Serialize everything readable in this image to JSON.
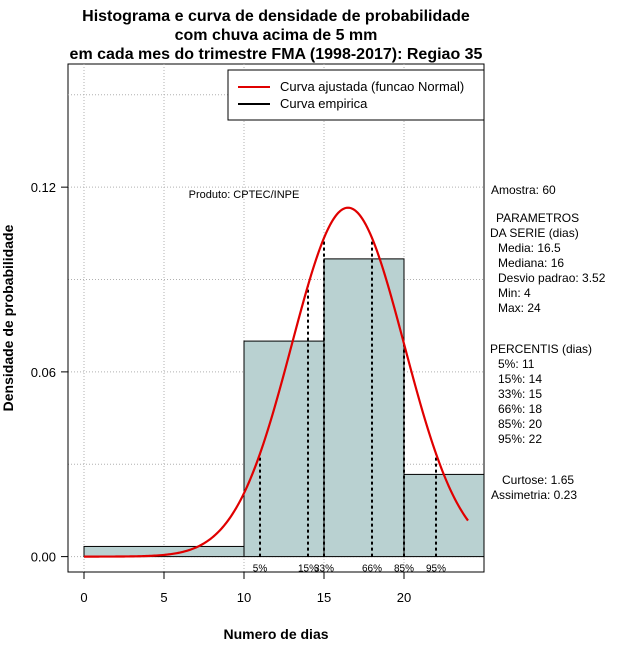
{
  "chart_data": {
    "type": "bar",
    "title": [
      "Histograma e curva de densidade de probabilidade",
      "com chuva acima de 5 mm",
      "em cada mes do trimestre FMA (1998-2017): Regiao 35"
    ],
    "xlabel": "Numero de dias",
    "ylabel": "Densidade de probabilidade",
    "xlim": [
      -1,
      25
    ],
    "ylim": [
      -0.005,
      0.16
    ],
    "x_ticks": [
      "0",
      "5",
      "10",
      "15",
      "20"
    ],
    "y_ticks": [
      "0.00",
      "0.06",
      "0.12"
    ],
    "bins": [
      {
        "from": 0,
        "to": 10,
        "density": 0.0033
      },
      {
        "from": 10,
        "to": 15,
        "density": 0.07
      },
      {
        "from": 15,
        "to": 20,
        "density": 0.0967
      },
      {
        "from": 20,
        "to": 25,
        "density": 0.0267
      }
    ],
    "normal_fit": {
      "mean": 16.5,
      "sd": 3.52,
      "x_from": 0,
      "x_to": 24
    },
    "percentiles": [
      {
        "label": "5%",
        "x": 11
      },
      {
        "label": "15%",
        "x": 14
      },
      {
        "label": "33%",
        "x": 15
      },
      {
        "label": "66%",
        "x": 18
      },
      {
        "label": "85%",
        "x": 20
      },
      {
        "label": "95%",
        "x": 22
      }
    ],
    "legend": [
      {
        "label": "Curva ajustada (funcao Normal)",
        "color": "#e00000"
      },
      {
        "label": "Curva empirica",
        "color": "#000000"
      }
    ],
    "annotation": "Produto: CPTEC/INPE",
    "colors": {
      "bar_fill": "#b9d1d1",
      "curve": "#e00000",
      "grid": "#b0b0b0"
    }
  },
  "side_panel": {
    "amostra": "Amostra: 60",
    "params_title_1": "PARAMETROS",
    "params_title_2": "DA SERIE (dias)",
    "params": [
      "Media: 16.5",
      "Mediana: 16",
      "Desvio padrao: 3.52",
      "Min: 4",
      "Max: 24"
    ],
    "percentis_title": "PERCENTIS (dias)",
    "percentis": [
      "5%: 11",
      "15%: 14",
      "33%: 15",
      "66%: 18",
      "85%: 20",
      "95%: 22"
    ],
    "curtose": "Curtose: 1.65",
    "assimetria": "Assimetria: 0.23"
  }
}
